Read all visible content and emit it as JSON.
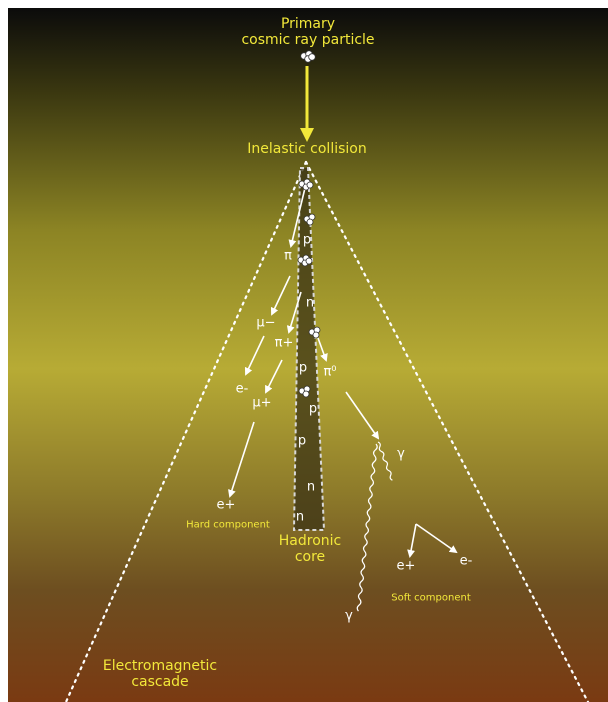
{
  "labels": {
    "primary_line1": "Primary",
    "primary_line2": "cosmic ray particle",
    "inelastic": "Inelastic collision",
    "hadronic_line1": "Hadronic",
    "hadronic_line2": "core",
    "hard": "Hard component",
    "soft": "Soft component",
    "em_line1": "Electromagnetic",
    "em_line2": "cascade"
  },
  "particles": {
    "pi": "π",
    "mu_minus": "μ−",
    "pi_plus": "π+",
    "pi_zero": "π⁰",
    "e_minus_left": "e-",
    "mu_plus": "μ+",
    "e_plus_hard": "e+",
    "gamma_right": "γ",
    "gamma_bottom": "γ",
    "e_plus_soft": "e+",
    "e_minus_soft": "e-",
    "core_p1": "p",
    "core_n1": "n",
    "core_p2": "p",
    "core_p3": "p",
    "core_p4": "p",
    "core_n2": "n",
    "core_n3": "n"
  },
  "colors": {
    "accent_yellow": "#f2e83a",
    "line_white": "#ffffff"
  }
}
